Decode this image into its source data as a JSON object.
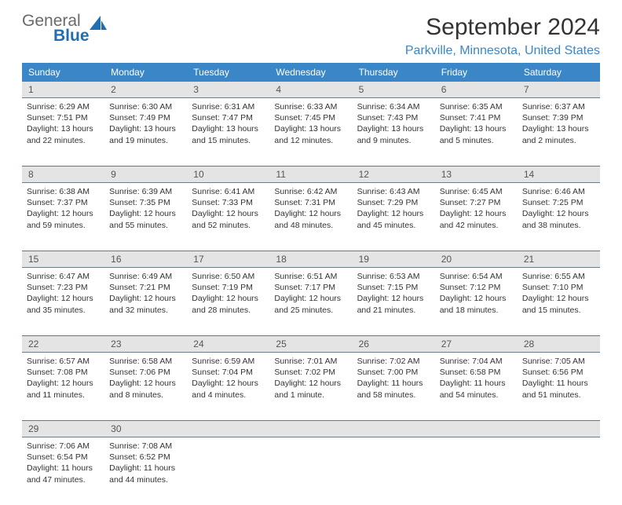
{
  "logo": {
    "top": "General",
    "bottom": "Blue"
  },
  "title": "September 2024",
  "location": "Parkville, Minnesota, United States",
  "theme": {
    "header_bg": "#3b86c6",
    "header_fg": "#ffffff",
    "daynum_bg": "#e4e4e4",
    "sep_color": "#5a7a95",
    "location_color": "#3b86c6"
  },
  "dow": [
    "Sunday",
    "Monday",
    "Tuesday",
    "Wednesday",
    "Thursday",
    "Friday",
    "Saturday"
  ],
  "weeks": [
    [
      {
        "n": "1",
        "sr": "6:29 AM",
        "ss": "7:51 PM",
        "dl": "13 hours and 22 minutes."
      },
      {
        "n": "2",
        "sr": "6:30 AM",
        "ss": "7:49 PM",
        "dl": "13 hours and 19 minutes."
      },
      {
        "n": "3",
        "sr": "6:31 AM",
        "ss": "7:47 PM",
        "dl": "13 hours and 15 minutes."
      },
      {
        "n": "4",
        "sr": "6:33 AM",
        "ss": "7:45 PM",
        "dl": "13 hours and 12 minutes."
      },
      {
        "n": "5",
        "sr": "6:34 AM",
        "ss": "7:43 PM",
        "dl": "13 hours and 9 minutes."
      },
      {
        "n": "6",
        "sr": "6:35 AM",
        "ss": "7:41 PM",
        "dl": "13 hours and 5 minutes."
      },
      {
        "n": "7",
        "sr": "6:37 AM",
        "ss": "7:39 PM",
        "dl": "13 hours and 2 minutes."
      }
    ],
    [
      {
        "n": "8",
        "sr": "6:38 AM",
        "ss": "7:37 PM",
        "dl": "12 hours and 59 minutes."
      },
      {
        "n": "9",
        "sr": "6:39 AM",
        "ss": "7:35 PM",
        "dl": "12 hours and 55 minutes."
      },
      {
        "n": "10",
        "sr": "6:41 AM",
        "ss": "7:33 PM",
        "dl": "12 hours and 52 minutes."
      },
      {
        "n": "11",
        "sr": "6:42 AM",
        "ss": "7:31 PM",
        "dl": "12 hours and 48 minutes."
      },
      {
        "n": "12",
        "sr": "6:43 AM",
        "ss": "7:29 PM",
        "dl": "12 hours and 45 minutes."
      },
      {
        "n": "13",
        "sr": "6:45 AM",
        "ss": "7:27 PM",
        "dl": "12 hours and 42 minutes."
      },
      {
        "n": "14",
        "sr": "6:46 AM",
        "ss": "7:25 PM",
        "dl": "12 hours and 38 minutes."
      }
    ],
    [
      {
        "n": "15",
        "sr": "6:47 AM",
        "ss": "7:23 PM",
        "dl": "12 hours and 35 minutes."
      },
      {
        "n": "16",
        "sr": "6:49 AM",
        "ss": "7:21 PM",
        "dl": "12 hours and 32 minutes."
      },
      {
        "n": "17",
        "sr": "6:50 AM",
        "ss": "7:19 PM",
        "dl": "12 hours and 28 minutes."
      },
      {
        "n": "18",
        "sr": "6:51 AM",
        "ss": "7:17 PM",
        "dl": "12 hours and 25 minutes."
      },
      {
        "n": "19",
        "sr": "6:53 AM",
        "ss": "7:15 PM",
        "dl": "12 hours and 21 minutes."
      },
      {
        "n": "20",
        "sr": "6:54 AM",
        "ss": "7:12 PM",
        "dl": "12 hours and 18 minutes."
      },
      {
        "n": "21",
        "sr": "6:55 AM",
        "ss": "7:10 PM",
        "dl": "12 hours and 15 minutes."
      }
    ],
    [
      {
        "n": "22",
        "sr": "6:57 AM",
        "ss": "7:08 PM",
        "dl": "12 hours and 11 minutes."
      },
      {
        "n": "23",
        "sr": "6:58 AM",
        "ss": "7:06 PM",
        "dl": "12 hours and 8 minutes."
      },
      {
        "n": "24",
        "sr": "6:59 AM",
        "ss": "7:04 PM",
        "dl": "12 hours and 4 minutes."
      },
      {
        "n": "25",
        "sr": "7:01 AM",
        "ss": "7:02 PM",
        "dl": "12 hours and 1 minute."
      },
      {
        "n": "26",
        "sr": "7:02 AM",
        "ss": "7:00 PM",
        "dl": "11 hours and 58 minutes."
      },
      {
        "n": "27",
        "sr": "7:04 AM",
        "ss": "6:58 PM",
        "dl": "11 hours and 54 minutes."
      },
      {
        "n": "28",
        "sr": "7:05 AM",
        "ss": "6:56 PM",
        "dl": "11 hours and 51 minutes."
      }
    ],
    [
      {
        "n": "29",
        "sr": "7:06 AM",
        "ss": "6:54 PM",
        "dl": "11 hours and 47 minutes."
      },
      {
        "n": "30",
        "sr": "7:08 AM",
        "ss": "6:52 PM",
        "dl": "11 hours and 44 minutes."
      },
      null,
      null,
      null,
      null,
      null
    ]
  ],
  "labels": {
    "sunrise": "Sunrise:",
    "sunset": "Sunset:",
    "daylight": "Daylight:"
  }
}
